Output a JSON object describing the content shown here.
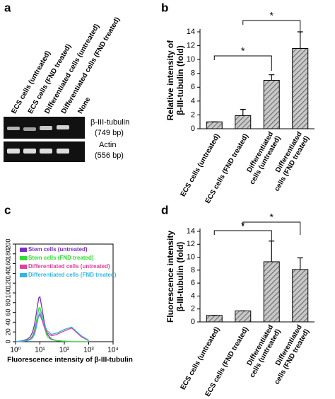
{
  "gel": {
    "label": "a",
    "lanes": [
      "ECS cells (untreated)",
      "ECS cells (FND treated)",
      "Differentiated cells (untreated)",
      "Differentiated cells (FND treated)",
      "None"
    ],
    "bands": [
      {
        "name": "β-III-tubulin",
        "size": "(749 bp)"
      },
      {
        "name": "Actin",
        "size": "(556 bp)"
      }
    ]
  },
  "chart_data": [
    {
      "type": "bar",
      "label": "b",
      "ylabel": [
        "Relative intensity of",
        "β-III-tubulin (fold)"
      ],
      "categories": [
        [
          "ECS cells (untreated)"
        ],
        [
          "ECS cells (FND treated)"
        ],
        [
          "Differentiated",
          "cells (untreated)"
        ],
        [
          "Differentiated",
          "cells (FND treated)"
        ]
      ],
      "values": [
        1.0,
        1.9,
        7.0,
        11.6
      ],
      "errors": [
        0,
        0.9,
        0.8,
        2.4
      ],
      "ylim": [
        0,
        14
      ],
      "yticks": [
        0,
        2,
        4,
        6,
        8,
        10,
        12,
        14
      ],
      "annotations": [
        "*",
        "*"
      ],
      "color": "#b0b0b0"
    },
    {
      "type": "line",
      "label": "c",
      "xlabel": "Fluorescence intensity of β-III-tubulin",
      "xscale": "log",
      "x": [
        1,
        2,
        3,
        4,
        5,
        6,
        7,
        8,
        9,
        10,
        12,
        15,
        20,
        30,
        50,
        100,
        200,
        500,
        1000
      ],
      "series": [
        {
          "name": "Stem cells (untreated)",
          "color": "#7b2fbf",
          "values": [
            0,
            2,
            5,
            10,
            20,
            35,
            55,
            75,
            90,
            92,
            70,
            40,
            15,
            5,
            2,
            1,
            0,
            0,
            0
          ]
        },
        {
          "name": "Stem cells (FND treated)",
          "color": "#33dd33",
          "values": [
            0,
            1,
            3,
            6,
            12,
            25,
            40,
            55,
            68,
            70,
            55,
            30,
            10,
            4,
            2,
            1,
            0,
            0,
            0
          ]
        },
        {
          "name": "Differentiated cells (untreated)",
          "color": "#e0409a",
          "values": [
            0,
            1,
            2,
            5,
            10,
            20,
            32,
            45,
            52,
            55,
            45,
            30,
            18,
            12,
            15,
            22,
            28,
            10,
            2
          ]
        },
        {
          "name": "Differentiated cells (FND treated)",
          "color": "#33b5e5",
          "values": [
            0,
            1,
            2,
            4,
            8,
            15,
            28,
            42,
            55,
            60,
            50,
            35,
            22,
            15,
            18,
            25,
            30,
            12,
            3
          ]
        }
      ],
      "xlim": [
        1,
        10000
      ],
      "xticks": [
        {
          "value": 1,
          "label": "10⁰"
        },
        {
          "value": 10,
          "label": "10¹"
        },
        {
          "value": 100,
          "label": "10²"
        },
        {
          "value": 1000,
          "label": "10³"
        },
        {
          "value": 10000,
          "label": "10⁴"
        }
      ],
      "ylim": [
        0,
        200
      ],
      "yticks": [
        0,
        20,
        40,
        60,
        80,
        100,
        120,
        140,
        160,
        180,
        200
      ],
      "legend": "upper left"
    },
    {
      "type": "bar",
      "label": "d",
      "ylabel": [
        "Fluorescence intensity",
        "β-III-tubulin (fold)"
      ],
      "categories": [
        [
          "ECS cells (untreated)"
        ],
        [
          "ECS cells (FND treated)"
        ],
        [
          "Differentiated",
          "cells (untreated)"
        ],
        [
          "Differentiated",
          "cells (FND treated)"
        ]
      ],
      "values": [
        1.0,
        1.7,
        9.3,
        8.1
      ],
      "errors": [
        0,
        0,
        3.2,
        1.8
      ],
      "ylim": [
        0,
        14
      ],
      "yticks": [
        0,
        2,
        4,
        6,
        8,
        10,
        12,
        14
      ],
      "annotations": [
        "*",
        "*"
      ],
      "color": "#b0b0b0"
    }
  ]
}
